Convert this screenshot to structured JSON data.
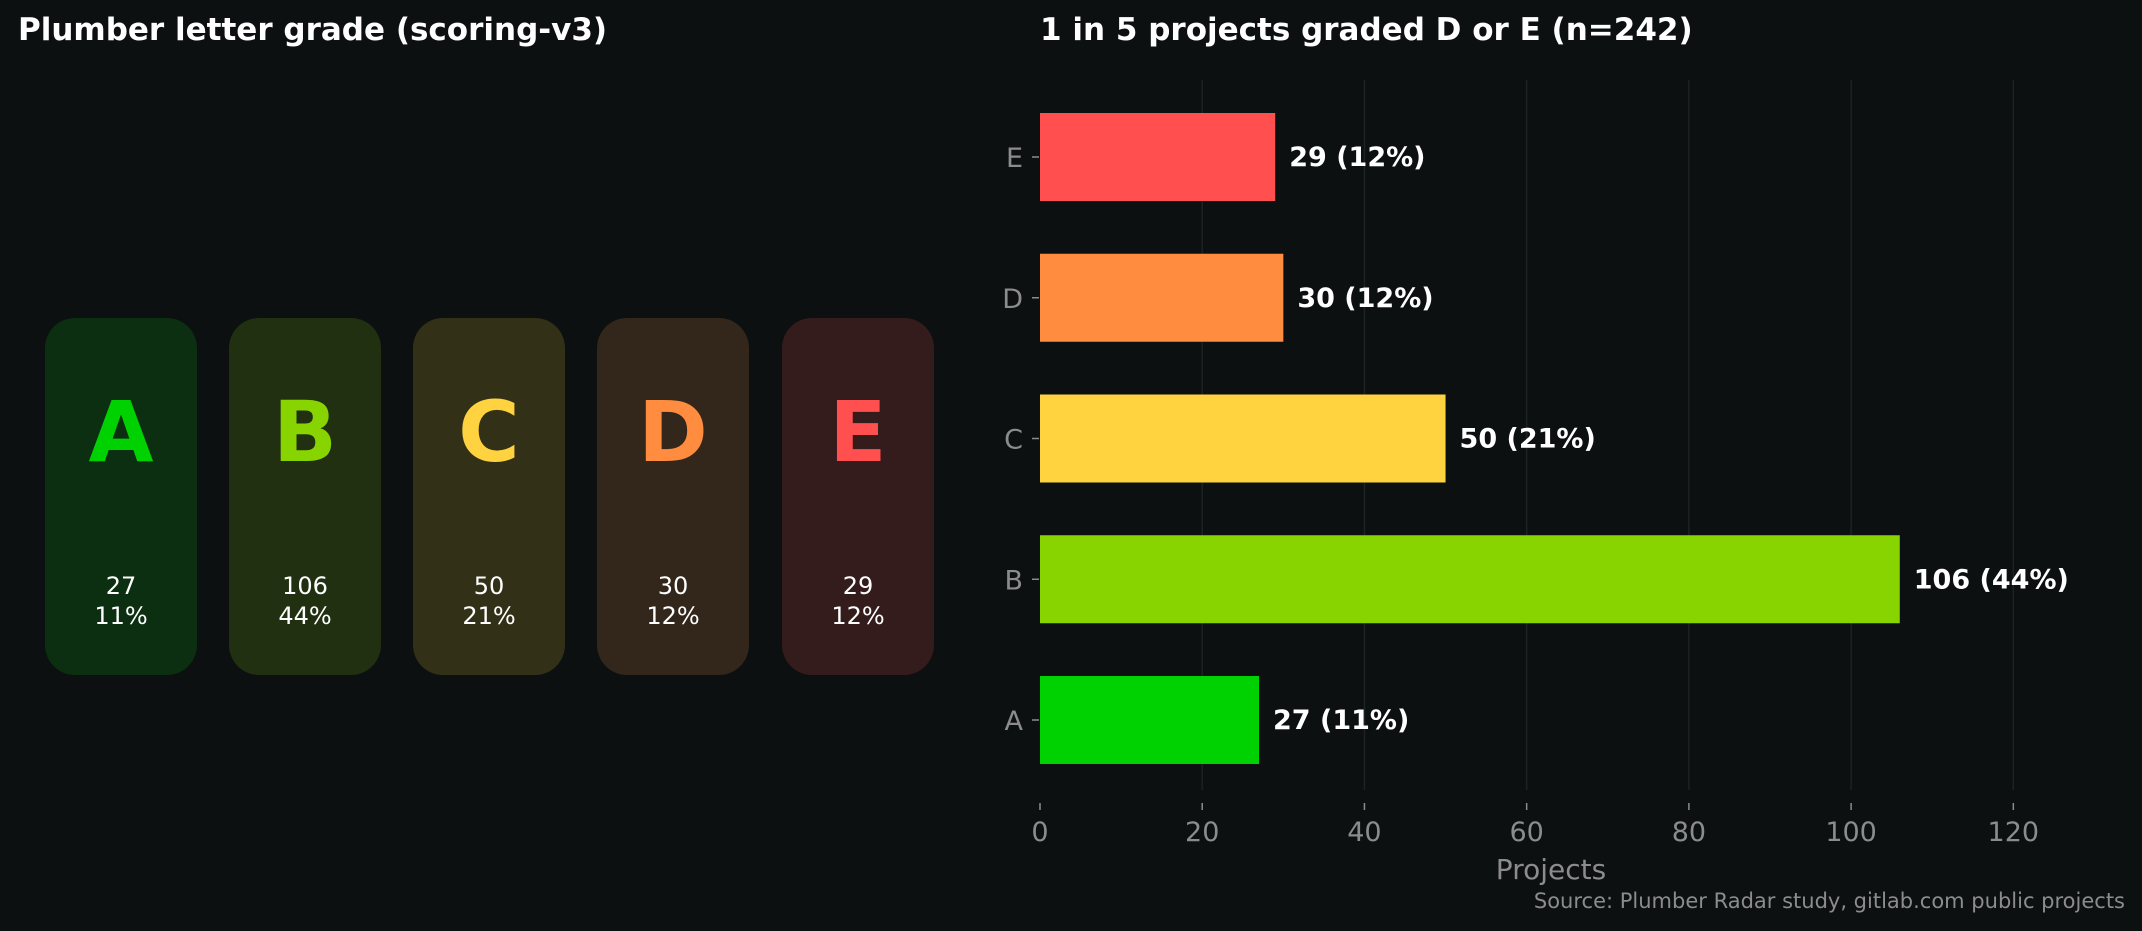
{
  "left_panel": {
    "title": "Plumber letter grade (scoring-v3)",
    "cards": [
      {
        "letter": "A",
        "count": "27",
        "pct": "11%",
        "color": "#00d100",
        "bg": "#0b2f10"
      },
      {
        "letter": "B",
        "count": "106",
        "pct": "44%",
        "color": "#88d400",
        "bg": "#203010"
      },
      {
        "letter": "C",
        "count": "50",
        "pct": "21%",
        "color": "#ffd23f",
        "bg": "#333018"
      },
      {
        "letter": "D",
        "count": "30",
        "pct": "12%",
        "color": "#ff8c3f",
        "bg": "#33261a"
      },
      {
        "letter": "E",
        "count": "29",
        "pct": "12%",
        "color": "#ff4f4f",
        "bg": "#351c1c"
      }
    ]
  },
  "chart_data": {
    "type": "bar",
    "orientation": "horizontal",
    "title": "1 in 5 projects graded D or E  (n=242)",
    "xlabel": "Projects",
    "ylabel": "",
    "categories": [
      "A",
      "B",
      "C",
      "D",
      "E"
    ],
    "values": [
      27,
      106,
      50,
      30,
      29
    ],
    "data_labels": [
      "27  (11%)",
      "106  (44%)",
      "50  (21%)",
      "30  (12%)",
      "29  (12%)"
    ],
    "colors": [
      "#00d100",
      "#88d400",
      "#ffd23f",
      "#ff8c3f",
      "#ff4f4f"
    ],
    "xlim": [
      0,
      126
    ],
    "xticks": [
      0,
      20,
      40,
      60,
      80,
      100,
      120
    ],
    "xtick_labels": [
      "0",
      "20",
      "40",
      "60",
      "80",
      "100",
      "120"
    ],
    "grid": "vertical"
  },
  "footer": {
    "source": "Source: Plumber Radar study, gitlab.com public projects"
  }
}
